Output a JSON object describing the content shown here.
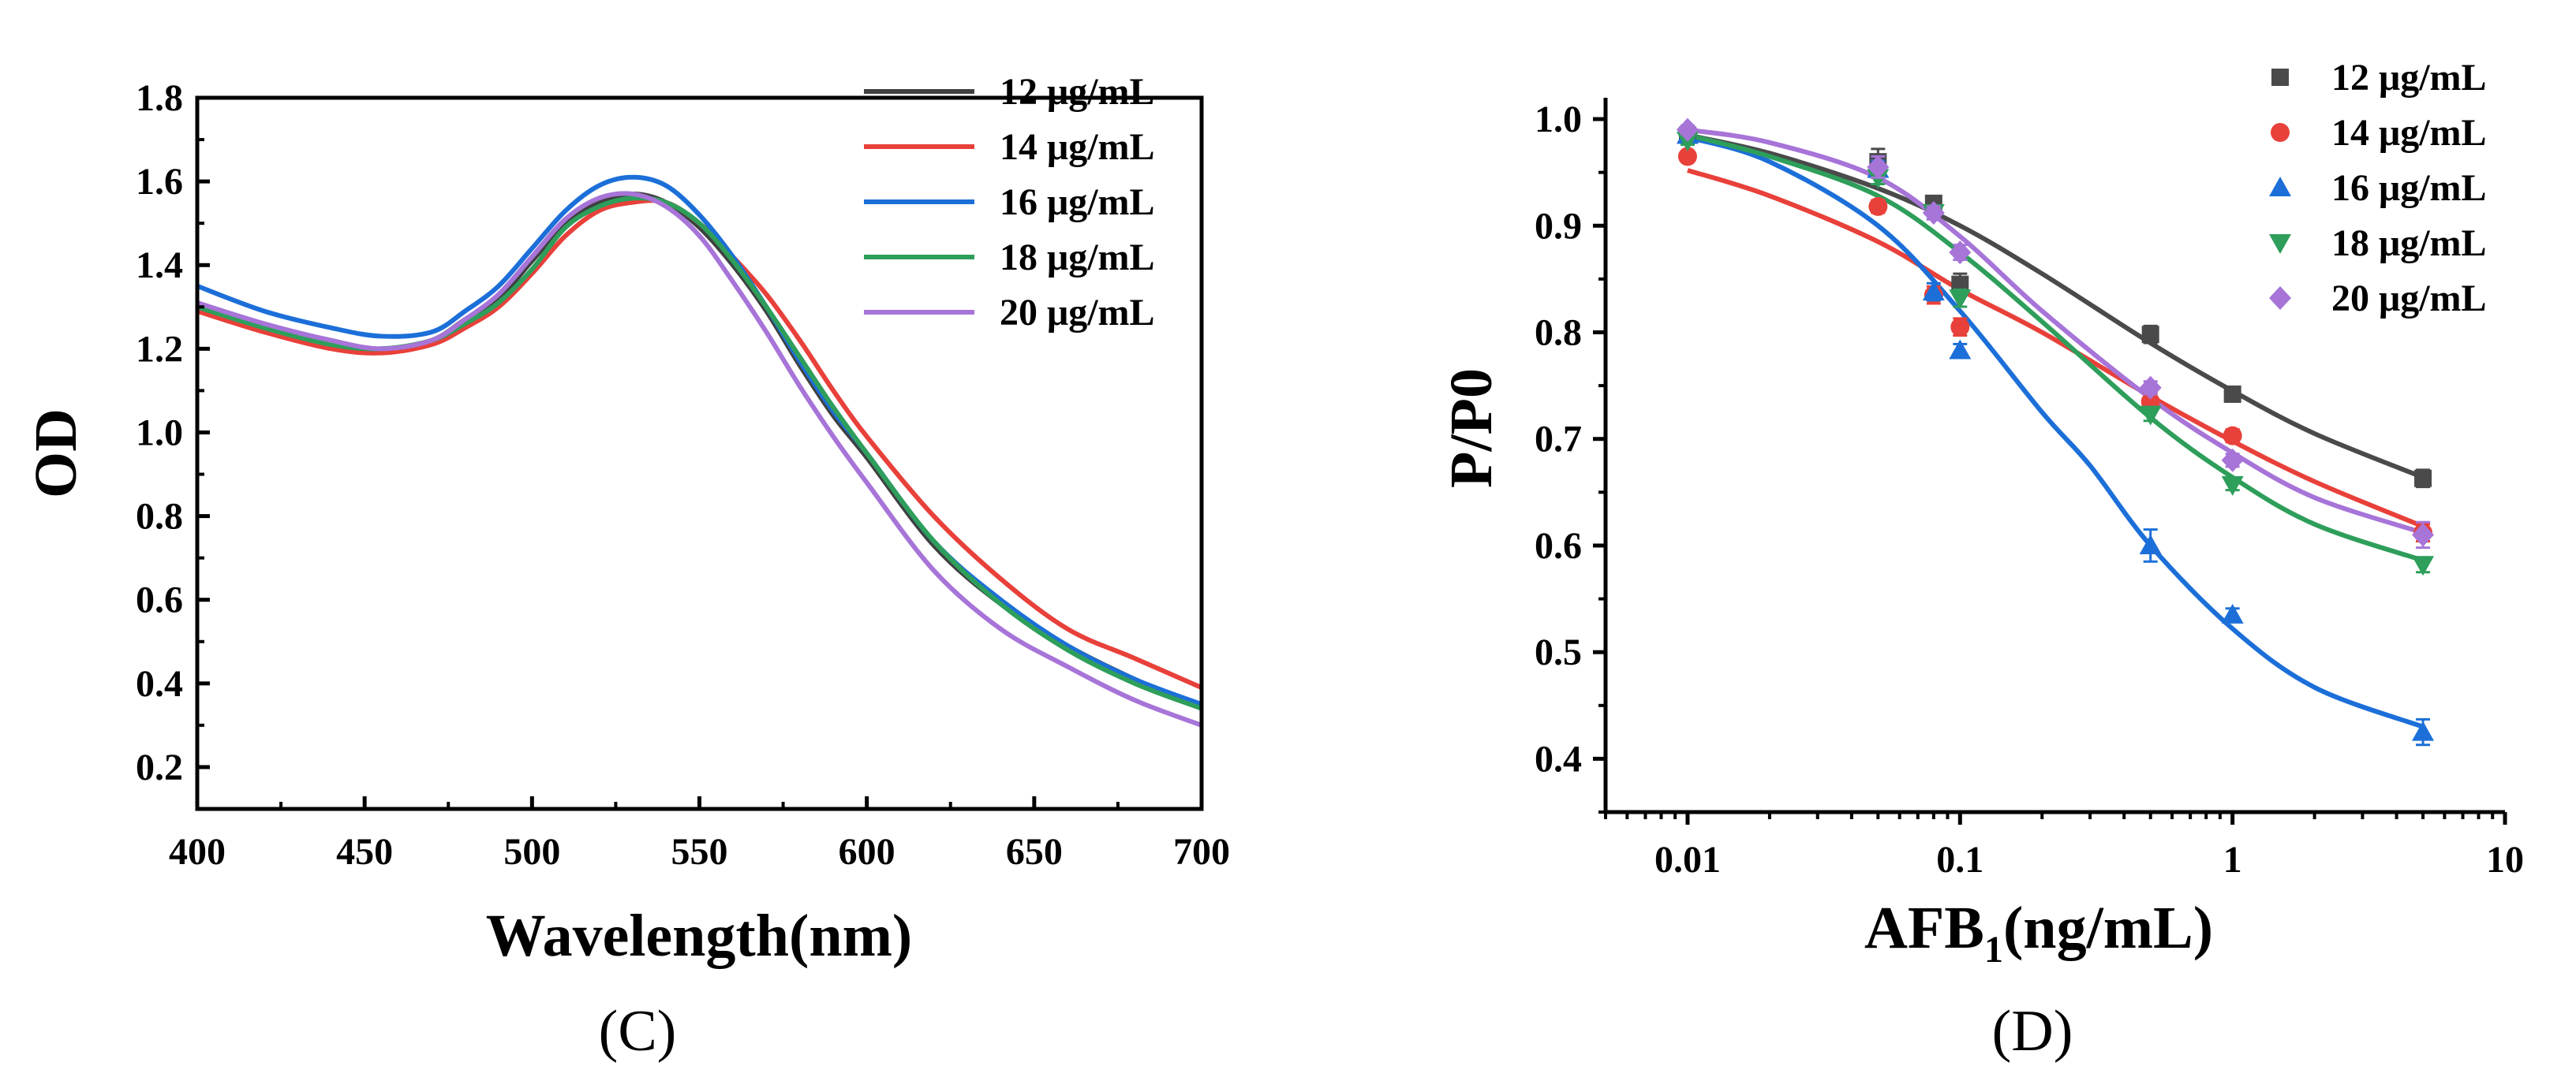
{
  "chart_data": [
    {
      "type": "line",
      "panel_label": "(C)",
      "xlabel": "Wavelength(nm)",
      "ylabel": "OD",
      "xlim": [
        400,
        700
      ],
      "ylim": [
        0.1,
        1.8
      ],
      "xticks": [
        "400",
        "450",
        "500",
        "550",
        "600",
        "650",
        "700"
      ],
      "yticks": [
        "0.2",
        "0.4",
        "0.6",
        "0.8",
        "1.0",
        "1.2",
        "1.4",
        "1.6",
        "1.8"
      ],
      "x": [
        400,
        420,
        440,
        455,
        470,
        480,
        490,
        500,
        510,
        520,
        530,
        540,
        550,
        560,
        570,
        580,
        590,
        600,
        620,
        640,
        660,
        680,
        700
      ],
      "series": [
        {
          "name": "12 μg/mL",
          "color": "#404040",
          "values": [
            1.31,
            1.25,
            1.21,
            1.2,
            1.22,
            1.27,
            1.32,
            1.41,
            1.5,
            1.55,
            1.57,
            1.55,
            1.49,
            1.4,
            1.29,
            1.16,
            1.04,
            0.94,
            0.73,
            0.59,
            0.49,
            0.41,
            0.34
          ]
        },
        {
          "name": "14 μg/mL",
          "color": "#e8403a",
          "values": [
            1.29,
            1.24,
            1.2,
            1.19,
            1.21,
            1.25,
            1.3,
            1.38,
            1.47,
            1.53,
            1.55,
            1.55,
            1.5,
            1.42,
            1.33,
            1.22,
            1.1,
            0.99,
            0.8,
            0.65,
            0.53,
            0.46,
            0.39
          ]
        },
        {
          "name": "16 μg/mL",
          "color": "#1c6fd8",
          "values": [
            1.35,
            1.29,
            1.25,
            1.23,
            1.24,
            1.29,
            1.35,
            1.44,
            1.53,
            1.59,
            1.61,
            1.59,
            1.52,
            1.42,
            1.3,
            1.17,
            1.05,
            0.95,
            0.74,
            0.6,
            0.49,
            0.41,
            0.35
          ]
        },
        {
          "name": "18 μg/mL",
          "color": "#2e9e5b",
          "values": [
            1.3,
            1.25,
            1.21,
            1.2,
            1.22,
            1.26,
            1.31,
            1.39,
            1.49,
            1.54,
            1.56,
            1.55,
            1.5,
            1.41,
            1.3,
            1.18,
            1.06,
            0.95,
            0.74,
            0.59,
            0.48,
            0.4,
            0.34
          ]
        },
        {
          "name": "20 μg/mL",
          "color": "#a774d8",
          "values": [
            1.31,
            1.26,
            1.22,
            1.2,
            1.22,
            1.27,
            1.33,
            1.42,
            1.51,
            1.56,
            1.57,
            1.54,
            1.47,
            1.36,
            1.24,
            1.11,
            0.99,
            0.88,
            0.67,
            0.53,
            0.44,
            0.36,
            0.3
          ]
        }
      ],
      "legend_position": "top-right"
    },
    {
      "type": "scatter",
      "panel_label": "(D)",
      "xlabel_main": "AFB",
      "xlabel_sub": "1",
      "xlabel_tail": "(ng/mL)",
      "ylabel": "P/P0",
      "xscale": "log",
      "xlim": [
        0.005,
        10
      ],
      "ylim": [
        0.35,
        1.02
      ],
      "xticks": [
        "0.01",
        "0.1",
        "1",
        "10"
      ],
      "yticks": [
        "0.4",
        "0.5",
        "0.6",
        "0.7",
        "0.8",
        "0.9",
        "1.0"
      ],
      "x": [
        0.01,
        0.05,
        0.08,
        0.1,
        0.5,
        1,
        5
      ],
      "series": [
        {
          "name": "12 μg/mL",
          "color": "#4a4a4a",
          "marker": "square",
          "values": [
            0.985,
            0.96,
            0.921,
            0.845,
            0.798,
            0.742,
            0.663
          ],
          "errors": [
            0.004,
            0.012,
            0.006,
            0.01,
            0.008,
            0.007,
            0.008
          ]
        },
        {
          "name": "14 μg/mL",
          "color": "#e8403a",
          "marker": "circle",
          "values": [
            0.965,
            0.918,
            0.835,
            0.805,
            0.735,
            0.703,
            0.612
          ],
          "errors": [
            0.004,
            0.006,
            0.008,
            0.008,
            0.008,
            0.006,
            0.008
          ]
        },
        {
          "name": "16 μg/mL",
          "color": "#1c6fd8",
          "marker": "triangle-up",
          "values": [
            0.985,
            0.953,
            0.838,
            0.783,
            0.6,
            0.535,
            0.425
          ],
          "errors": [
            0.004,
            0.008,
            0.008,
            0.006,
            0.015,
            0.006,
            0.012
          ]
        },
        {
          "name": "18 μg/mL",
          "color": "#2e9e5b",
          "marker": "triangle-down",
          "values": [
            0.98,
            0.945,
            0.912,
            0.832,
            0.723,
            0.657,
            0.582
          ],
          "errors": [
            0.004,
            0.006,
            0.006,
            0.008,
            0.006,
            0.005,
            0.007
          ]
        },
        {
          "name": "20 μg/mL",
          "color": "#a774d8",
          "marker": "diamond",
          "values": [
            0.99,
            0.955,
            0.912,
            0.875,
            0.748,
            0.68,
            0.61
          ],
          "errors": [
            0.004,
            0.01,
            0.006,
            0.007,
            0.006,
            0.006,
            0.012
          ]
        }
      ],
      "fit_curves": [
        {
          "name": "12 μg/mL",
          "color": "#4a4a4a",
          "x": [
            0.01,
            0.02,
            0.05,
            0.1,
            0.2,
            0.5,
            1,
            2,
            5
          ],
          "y": [
            0.985,
            0.968,
            0.935,
            0.9,
            0.855,
            0.79,
            0.745,
            0.705,
            0.664
          ]
        },
        {
          "name": "14 μg/mL",
          "color": "#e8403a",
          "x": [
            0.01,
            0.02,
            0.05,
            0.1,
            0.2,
            0.5,
            1,
            2,
            5
          ],
          "y": [
            0.952,
            0.928,
            0.885,
            0.84,
            0.8,
            0.74,
            0.698,
            0.66,
            0.618
          ]
        },
        {
          "name": "16 μg/mL",
          "color": "#1c6fd8",
          "x": [
            0.01,
            0.02,
            0.05,
            0.1,
            0.2,
            0.3,
            0.5,
            1,
            2,
            5
          ],
          "y": [
            0.983,
            0.96,
            0.9,
            0.82,
            0.725,
            0.675,
            0.6,
            0.522,
            0.467,
            0.43
          ]
        },
        {
          "name": "18 μg/mL",
          "color": "#2e9e5b",
          "x": [
            0.01,
            0.02,
            0.05,
            0.1,
            0.2,
            0.5,
            1,
            2,
            5
          ],
          "y": [
            0.985,
            0.965,
            0.928,
            0.875,
            0.81,
            0.72,
            0.664,
            0.62,
            0.586
          ]
        },
        {
          "name": "20 μg/mL",
          "color": "#a774d8",
          "x": [
            0.01,
            0.02,
            0.05,
            0.1,
            0.2,
            0.5,
            1,
            2,
            5
          ],
          "y": [
            0.99,
            0.978,
            0.945,
            0.89,
            0.82,
            0.738,
            0.687,
            0.645,
            0.612
          ]
        }
      ],
      "legend_position": "top-right"
    }
  ]
}
